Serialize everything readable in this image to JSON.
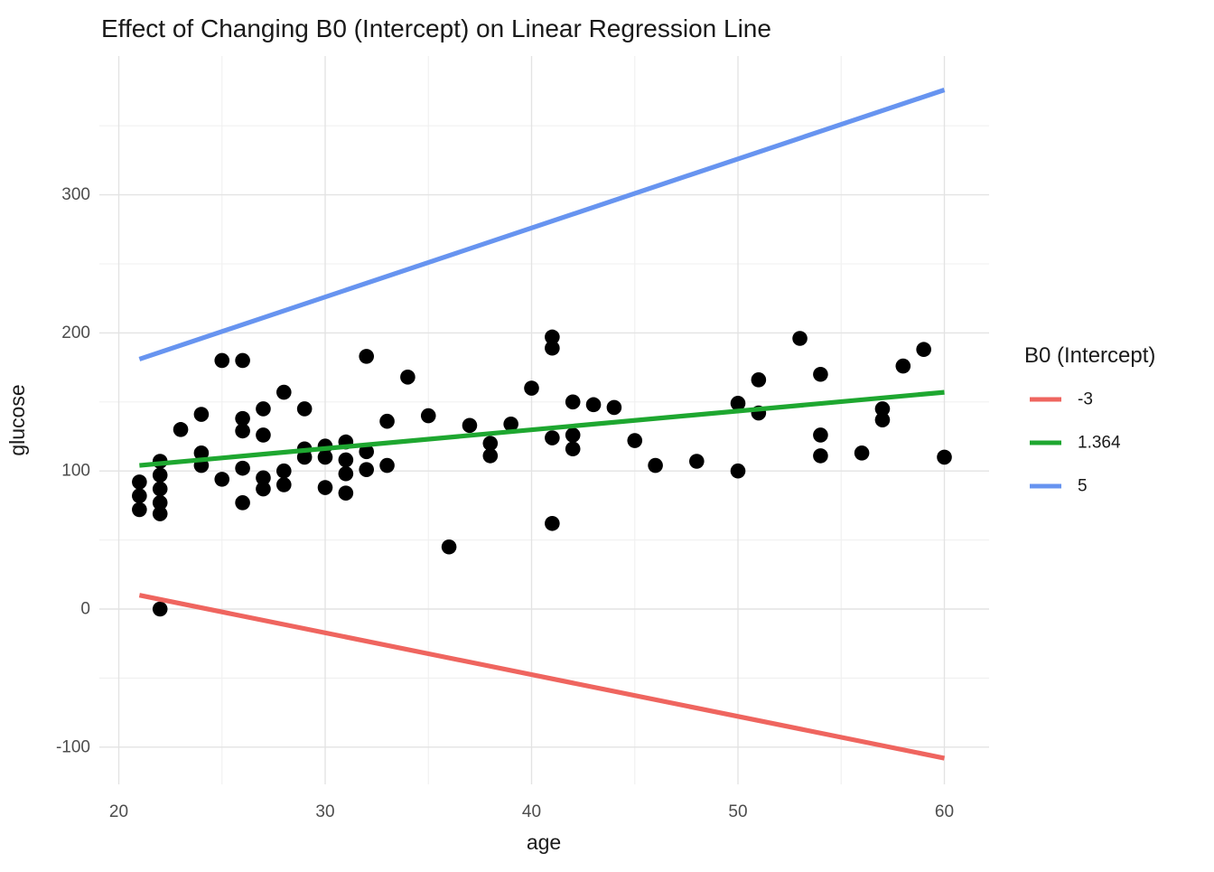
{
  "title": "Effect of Changing B0 (Intercept) on Linear Regression Line",
  "x_axis": {
    "label": "age"
  },
  "y_axis": {
    "label": "glucose"
  },
  "legend": {
    "title": "B0 (Intercept)",
    "items": [
      {
        "label": "-3",
        "color": "#EF655F"
      },
      {
        "label": "1.364",
        "color": "#1EA730"
      },
      {
        "label": "5",
        "color": "#6794F0"
      }
    ]
  },
  "colors": {
    "point": "#000000",
    "grid_major": "#E3E3E3",
    "grid_minor": "#F0F0F0",
    "tick_label": "#4D4D4D",
    "text": "#1A1A1A"
  },
  "chart_data": {
    "type": "scatter",
    "title": "Effect of Changing B0 (Intercept) on Linear Regression Line",
    "xlabel": "age",
    "ylabel": "glucose",
    "xlim": [
      19.1,
      62.2
    ],
    "ylim": [
      -127,
      400
    ],
    "x_ticks": [
      20,
      30,
      40,
      50,
      60
    ],
    "x_minor_ticks": [
      25,
      35,
      45,
      55
    ],
    "y_ticks": [
      -100,
      0,
      100,
      200,
      300
    ],
    "y_minor_ticks": [
      -50,
      50,
      150,
      250,
      350
    ],
    "grid": true,
    "legend_position": "right",
    "points": [
      [
        21,
        92
      ],
      [
        21,
        82
      ],
      [
        21,
        72
      ],
      [
        22,
        107
      ],
      [
        22,
        97
      ],
      [
        22,
        87
      ],
      [
        22,
        77
      ],
      [
        22,
        69
      ],
      [
        22,
        0
      ],
      [
        23,
        130
      ],
      [
        24,
        141
      ],
      [
        24,
        113
      ],
      [
        24,
        104
      ],
      [
        25,
        180
      ],
      [
        25,
        94
      ],
      [
        26,
        180
      ],
      [
        26,
        138
      ],
      [
        26,
        129
      ],
      [
        26,
        102
      ],
      [
        26,
        77
      ],
      [
        27,
        145
      ],
      [
        27,
        126
      ],
      [
        27,
        95
      ],
      [
        27,
        87
      ],
      [
        28,
        157
      ],
      [
        28,
        100
      ],
      [
        28,
        90
      ],
      [
        29,
        145
      ],
      [
        29,
        116
      ],
      [
        29,
        110
      ],
      [
        30,
        118
      ],
      [
        30,
        110
      ],
      [
        30,
        88
      ],
      [
        31,
        121
      ],
      [
        31,
        108
      ],
      [
        31,
        98
      ],
      [
        31,
        84
      ],
      [
        32,
        183
      ],
      [
        32,
        114
      ],
      [
        32,
        101
      ],
      [
        33,
        136
      ],
      [
        33,
        104
      ],
      [
        34,
        168
      ],
      [
        35,
        140
      ],
      [
        36,
        45
      ],
      [
        37,
        133
      ],
      [
        38,
        120
      ],
      [
        38,
        111
      ],
      [
        39,
        134
      ],
      [
        40,
        160
      ],
      [
        41,
        197
      ],
      [
        41,
        189
      ],
      [
        41,
        124
      ],
      [
        41,
        62
      ],
      [
        42,
        150
      ],
      [
        42,
        126
      ],
      [
        42,
        116
      ],
      [
        43,
        148
      ],
      [
        44,
        146
      ],
      [
        45,
        122
      ],
      [
        46,
        104
      ],
      [
        48,
        107
      ],
      [
        50,
        149
      ],
      [
        50,
        100
      ],
      [
        51,
        166
      ],
      [
        51,
        142
      ],
      [
        53,
        196
      ],
      [
        54,
        170
      ],
      [
        54,
        126
      ],
      [
        54,
        111
      ],
      [
        56,
        113
      ],
      [
        57,
        145
      ],
      [
        57,
        137
      ],
      [
        58,
        176
      ],
      [
        59,
        188
      ],
      [
        60,
        110
      ]
    ],
    "series": [
      {
        "name": "-3",
        "type": "line",
        "color": "#EF655F",
        "endpoints": [
          [
            21,
            10
          ],
          [
            60,
            -108
          ]
        ]
      },
      {
        "name": "1.364",
        "type": "line",
        "color": "#1EA730",
        "endpoints": [
          [
            21,
            104
          ],
          [
            60,
            157
          ]
        ]
      },
      {
        "name": "5",
        "type": "line",
        "color": "#6794F0",
        "endpoints": [
          [
            21,
            181
          ],
          [
            60,
            376
          ]
        ]
      }
    ]
  }
}
